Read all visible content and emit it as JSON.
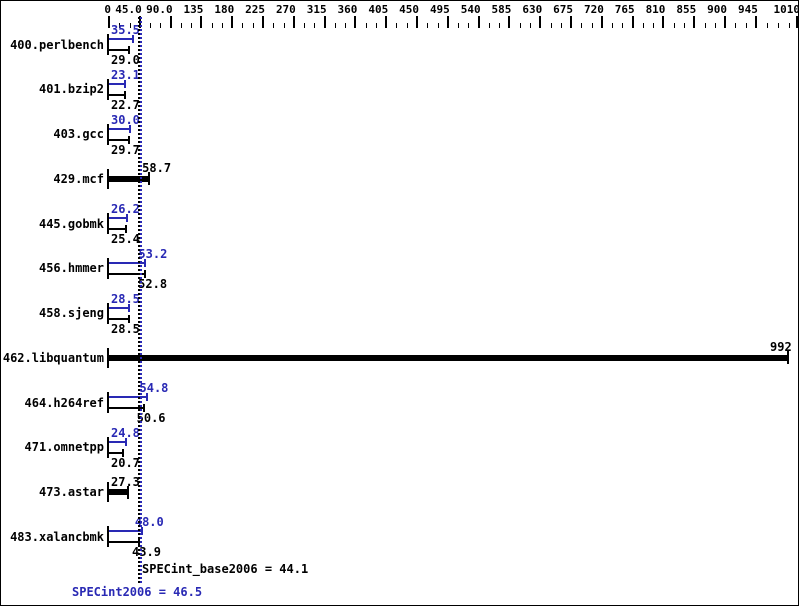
{
  "chart_data": {
    "type": "bar",
    "orientation": "horizontal",
    "title": "",
    "xlabel": "",
    "ylabel": "",
    "axis": {
      "min": 0,
      "max": 1010,
      "major_tick_interval": 45,
      "minor_ticks_per_major": 2,
      "tick_labels": [
        "0",
        "45.0",
        "90.0",
        "135",
        "180",
        "225",
        "270",
        "315",
        "360",
        "405",
        "450",
        "495",
        "540",
        "585",
        "630",
        "675",
        "720",
        "765",
        "810",
        "855",
        "900",
        "945",
        "1010"
      ],
      "grid": false,
      "position": "top"
    },
    "categories": [
      "400.perlbench",
      "401.bzip2",
      "403.gcc",
      "429.mcf",
      "445.gobmk",
      "456.hmmer",
      "458.sjeng",
      "462.libquantum",
      "464.h264ref",
      "471.omnetpp",
      "473.astar",
      "483.xalancbmk"
    ],
    "series": [
      {
        "name": "peak (SPECint2006)",
        "color": "#2929b4",
        "values": [
          35.5,
          23.1,
          30.0,
          null,
          26.2,
          53.2,
          28.5,
          null,
          54.8,
          24.8,
          null,
          48.0
        ]
      },
      {
        "name": "base (SPECint_base2006)",
        "color": "#000000",
        "values": [
          29.0,
          22.7,
          29.7,
          58.7,
          25.4,
          52.8,
          28.5,
          992,
          50.6,
          20.7,
          27.3,
          43.9
        ]
      }
    ],
    "single_bar_rows_note": "rows with null peak are drawn as one thick black bar",
    "reference_lines": [
      {
        "value": 44.1,
        "color": "#000000",
        "style": "dotted"
      },
      {
        "value": 46.5,
        "color": "#2929b4",
        "style": "dotted"
      }
    ]
  },
  "summary": {
    "base_line": "SPECint_base2006 = 44.1",
    "peak_line": "SPECint2006 = 46.5"
  },
  "colors": {
    "peak_blue": "#2929b4",
    "base_black": "#000000",
    "background": "#ffffff"
  }
}
